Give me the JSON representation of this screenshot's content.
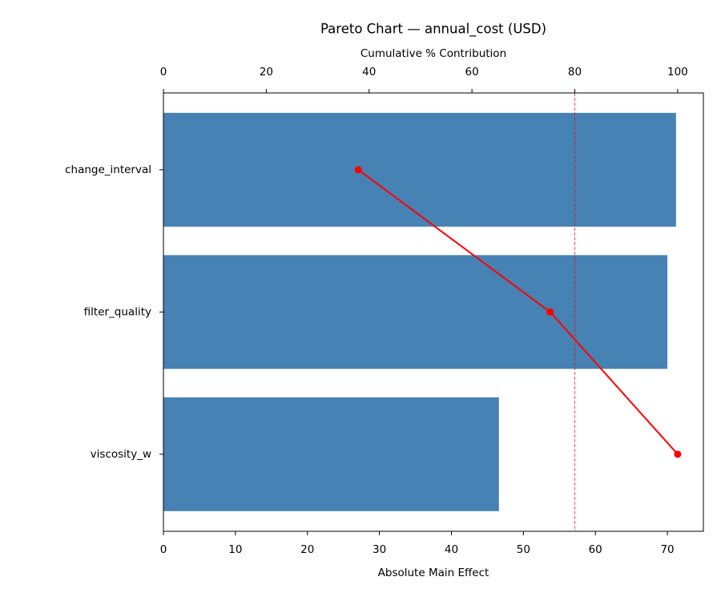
{
  "chart_data": {
    "type": "bar",
    "orientation": "horizontal",
    "title": "Pareto Chart — annual_cost (USD)",
    "xlabel": "Absolute Main Effect",
    "x2label": "Cumulative % Contribution",
    "categories": [
      "change_interval",
      "filter_quality",
      "viscosity_w"
    ],
    "values": [
      71.2,
      70.0,
      46.6
    ],
    "color": "#4682b4",
    "cumulative": {
      "values": [
        37.9,
        75.2,
        100
      ],
      "color": "#ff0000",
      "axis": "x2"
    },
    "threshold": {
      "value": 80,
      "color": "#ff0000"
    },
    "xlim": [
      0,
      75
    ],
    "xticks": [
      0,
      10,
      20,
      30,
      40,
      50,
      60,
      70
    ],
    "x2lim": [
      0,
      105
    ],
    "x2ticks": [
      0,
      20,
      40,
      60,
      80,
      100
    ]
  }
}
